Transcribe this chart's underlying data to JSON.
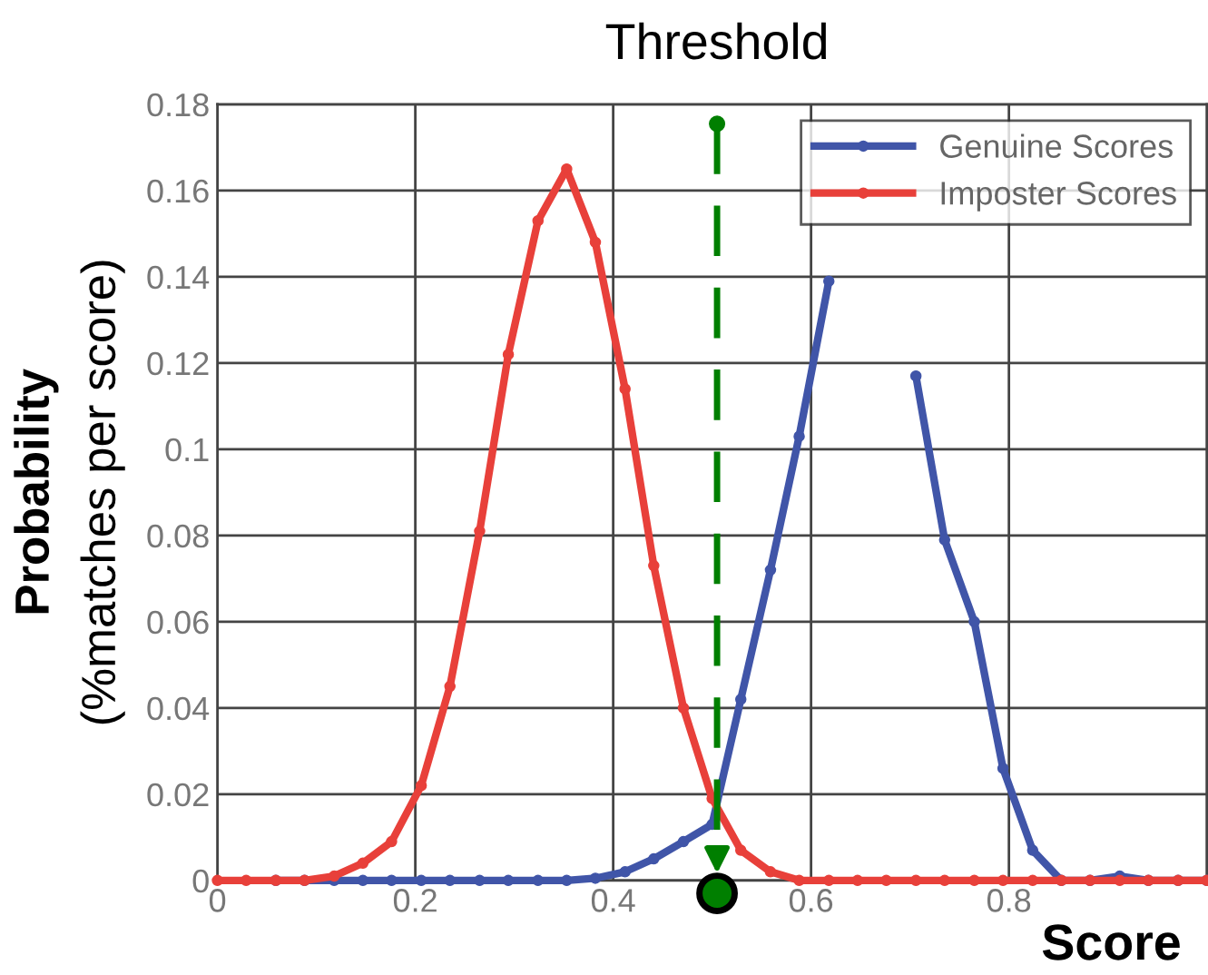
{
  "chart_data": {
    "type": "line",
    "xlabel": "Score",
    "ylabel": "Probability\n(%matches per score)",
    "x": [
      0,
      0.029,
      0.059,
      0.088,
      0.118,
      0.147,
      0.176,
      0.206,
      0.235,
      0.265,
      0.294,
      0.324,
      0.353,
      0.382,
      0.412,
      0.441,
      0.471,
      0.5,
      0.529,
      0.559,
      0.588,
      0.618,
      0.647,
      0.676,
      0.706,
      0.735,
      0.765,
      0.794,
      0.824,
      0.853,
      0.882,
      0.912,
      0.941,
      0.971,
      1.0
    ],
    "series": [
      {
        "name": "Genuine Scores",
        "color": "#4055a8",
        "values": [
          null,
          null,
          0,
          0,
          0,
          0,
          0,
          0,
          0,
          0,
          0,
          0,
          0,
          0.0005,
          0.002,
          0.005,
          0.009,
          0.013,
          0.042,
          0.072,
          0.103,
          0.139,
          null,
          null,
          0.117,
          0.079,
          0.06,
          0.026,
          0.007,
          0,
          0,
          0.001,
          0,
          0,
          0
        ]
      },
      {
        "name": "Imposter Scores",
        "color": "#e8403a",
        "values": [
          0,
          0,
          0,
          0,
          0.001,
          0.004,
          0.009,
          0.022,
          0.045,
          0.081,
          0.122,
          0.153,
          0.165,
          0.148,
          0.114,
          0.073,
          0.04,
          0.019,
          0.007,
          0.002,
          0,
          0,
          0,
          0,
          0,
          0,
          0,
          0,
          0,
          0,
          0,
          0,
          0,
          0,
          0
        ]
      }
    ],
    "xlim": [
      0,
      1
    ],
    "xticks": [
      0,
      0.2,
      0.4,
      0.6,
      0.8
    ],
    "ylim": [
      0,
      0.18
    ],
    "yticks": [
      0,
      0.02,
      0.04,
      0.06,
      0.08,
      0.1,
      0.12,
      0.14,
      0.16,
      0.18
    ],
    "ref_lines": [
      {
        "axis": "x",
        "value": 0.505,
        "label": "Threshold",
        "color": "#007f00",
        "line_style": "dashed"
      }
    ],
    "grid": true,
    "legend": "top right",
    "marker": "circle",
    "line_style": "solid"
  }
}
